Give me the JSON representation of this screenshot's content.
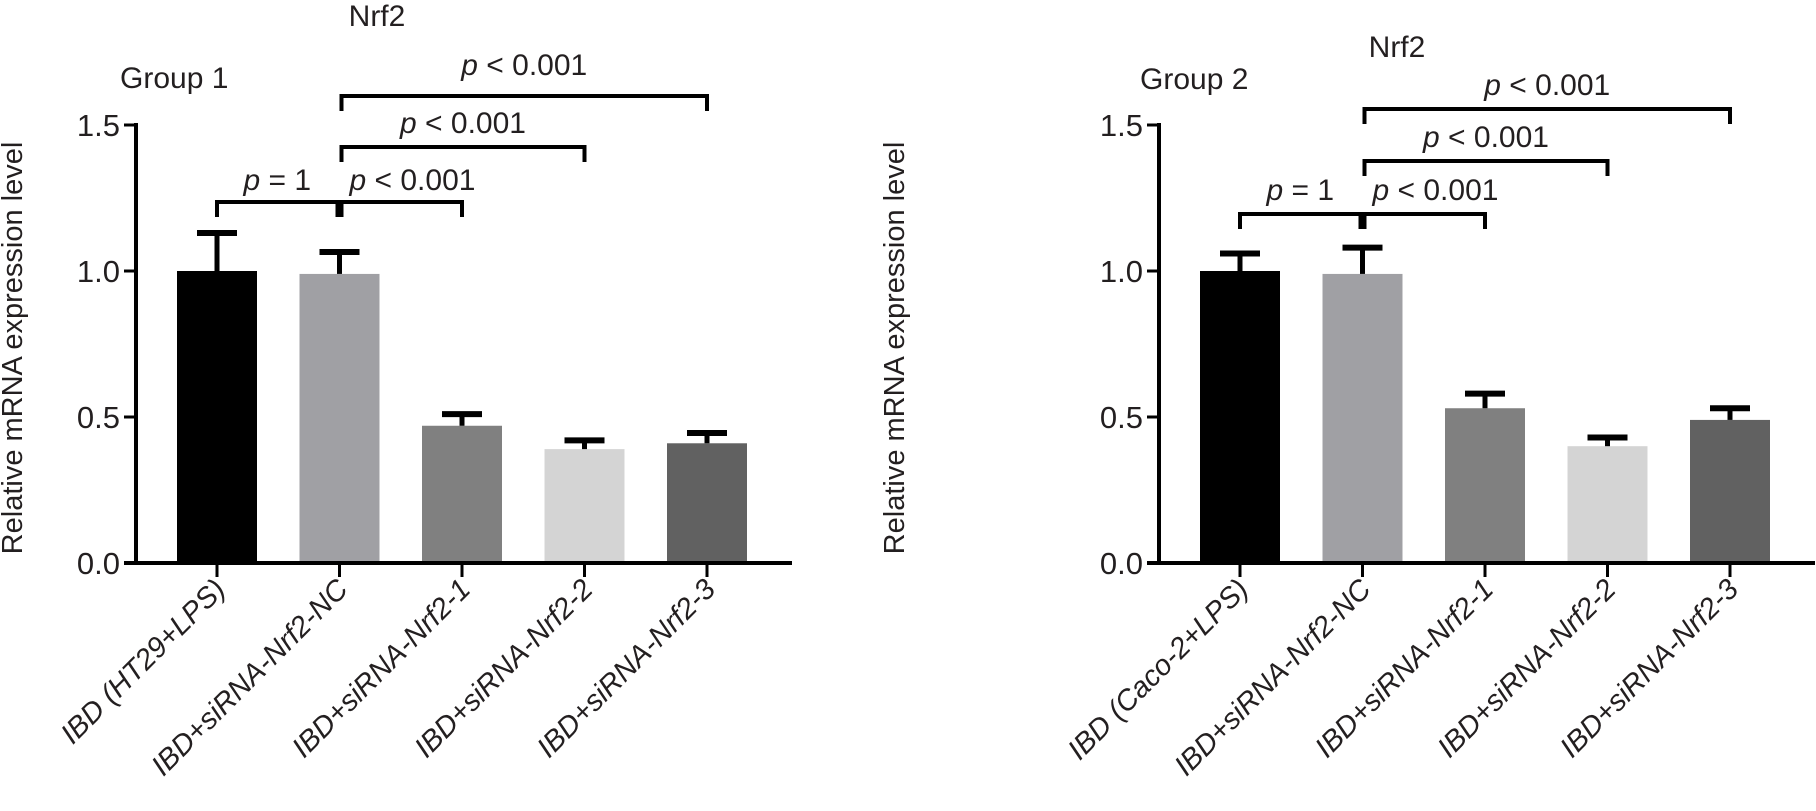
{
  "chart_data": [
    {
      "type": "bar",
      "title": "Nrf2",
      "subtitle": "Group 1",
      "xlabel": "",
      "ylabel": "Relative mRNA expression level",
      "ylim": [
        0,
        1.5
      ],
      "yticks": [
        "0.0",
        "0.5",
        "1.0",
        "1.5"
      ],
      "grid": false,
      "categories": [
        "IBD (HT29+LPS)",
        "IBD+siRNA-Nrf2-NC",
        "IBD+siRNA-Nrf2-1",
        "IBD+siRNA-Nrf2-2",
        "IBD+siRNA-Nrf2-3"
      ],
      "values": [
        1.0,
        0.99,
        0.47,
        0.39,
        0.41
      ],
      "error_upper": [
        1.13,
        1.065,
        0.51,
        0.42,
        0.445
      ],
      "colors": [
        "#000000",
        "#a0a0a4",
        "#808080",
        "#d4d4d4",
        "#616161"
      ],
      "comparisons": [
        {
          "from": 0,
          "to": 1,
          "label_prefix": "p",
          "label_rest": " = 1",
          "level": 0
        },
        {
          "from": 1,
          "to": 2,
          "label_prefix": "p",
          "label_rest": " < 0.001",
          "level": 0
        },
        {
          "from": 1,
          "to": 3,
          "label_prefix": "p",
          "label_rest": " < 0.001",
          "level": 1
        },
        {
          "from": 1,
          "to": 4,
          "label_prefix": "p",
          "label_rest": " < 0.001",
          "level": 2
        }
      ]
    },
    {
      "type": "bar",
      "title": "Nrf2",
      "subtitle": "Group 2",
      "xlabel": "",
      "ylabel": "Relative mRNA expression level",
      "ylim": [
        0,
        1.5
      ],
      "yticks": [
        "0.0",
        "0.5",
        "1.0",
        "1.5"
      ],
      "grid": false,
      "categories": [
        "IBD (Caco-2+LPS)",
        "IBD+siRNA-Nrf2-NC",
        "IBD+siRNA-Nrf2-1",
        "IBD+siRNA-Nrf2-2",
        "IBD+siRNA-Nrf2-3"
      ],
      "values": [
        1.0,
        0.99,
        0.53,
        0.4,
        0.49
      ],
      "error_upper": [
        1.06,
        1.08,
        0.58,
        0.43,
        0.53
      ],
      "colors": [
        "#000000",
        "#a0a0a4",
        "#808080",
        "#d4d4d4",
        "#616161"
      ],
      "comparisons": [
        {
          "from": 0,
          "to": 1,
          "label_prefix": "p",
          "label_rest": " = 1",
          "level": 0
        },
        {
          "from": 1,
          "to": 2,
          "label_prefix": "p",
          "label_rest": " < 0.001",
          "level": 0
        },
        {
          "from": 1,
          "to": 3,
          "label_prefix": "p",
          "label_rest": " < 0.001",
          "level": 1
        },
        {
          "from": 1,
          "to": 4,
          "label_prefix": "p",
          "label_rest": " < 0.001",
          "level": 2
        }
      ]
    }
  ]
}
